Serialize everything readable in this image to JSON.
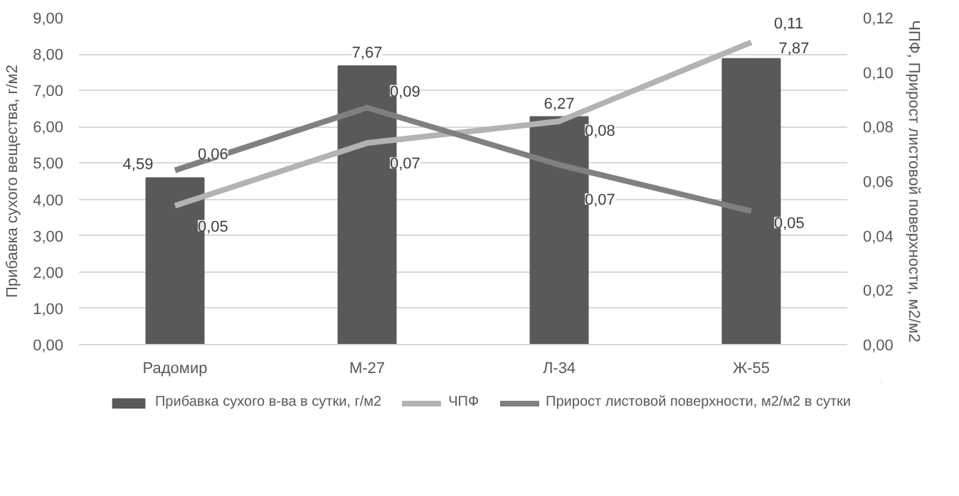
{
  "chart_data": {
    "type": "bar",
    "ylabel": "Прибавка сухого вещества, г/м2",
    "y2label": "ЧПФ, Прирост листовой поверхности, м2/м2",
    "categories": [
      "Радомир",
      "М-27",
      "Л-34",
      "Ж-55"
    ],
    "series": [
      {
        "name": "Прибавка сухого в-ва в сутки, г/м2",
        "color": "#595959",
        "values": [
          4.59,
          7.67,
          6.27,
          7.87
        ],
        "value_labels": [
          "4,59",
          "7,67",
          "6,27",
          "7,87"
        ]
      },
      {
        "name": "ЧПФ",
        "type": "line",
        "axis": "y2",
        "color": "#b3b3b3",
        "values": [
          0.051,
          0.074,
          0.082,
          0.111
        ],
        "value_labels": [
          "0,05",
          "0,07",
          "0,08",
          "0,11"
        ]
      },
      {
        "name": "Прирост листовой поверхности, м2/м2 в сутки",
        "type": "line",
        "axis": "y2",
        "color": "#808080",
        "values": [
          0.064,
          0.087,
          0.066,
          0.049
        ],
        "value_labels": [
          "0,06",
          "0,09",
          "0,07",
          "0,05"
        ]
      }
    ],
    "ylim": [
      0,
      9
    ],
    "yticks": [
      {
        "value": 0,
        "label": "0,00"
      },
      {
        "value": 1,
        "label": "1,00"
      },
      {
        "value": 2,
        "label": "2,00"
      },
      {
        "value": 3,
        "label": "3,00"
      },
      {
        "value": 4,
        "label": "4,00"
      },
      {
        "value": 5,
        "label": "5,00"
      },
      {
        "value": 6,
        "label": "6,00"
      },
      {
        "value": 7,
        "label": "7,00"
      },
      {
        "value": 8,
        "label": "8,00"
      },
      {
        "value": 9,
        "label": "9,00"
      }
    ],
    "y2lim": [
      0,
      0.12
    ],
    "y2ticks": [
      {
        "value": 0,
        "label": "0,00"
      },
      {
        "value": 0.02,
        "label": "0,02"
      },
      {
        "value": 0.04,
        "label": "0,04"
      },
      {
        "value": 0.06,
        "label": "0,06"
      },
      {
        "value": 0.08,
        "label": "0,08"
      },
      {
        "value": 0.1,
        "label": "0,10"
      },
      {
        "value": 0.12,
        "label": "0,12"
      }
    ],
    "grid": "y",
    "legend": "bottom"
  }
}
